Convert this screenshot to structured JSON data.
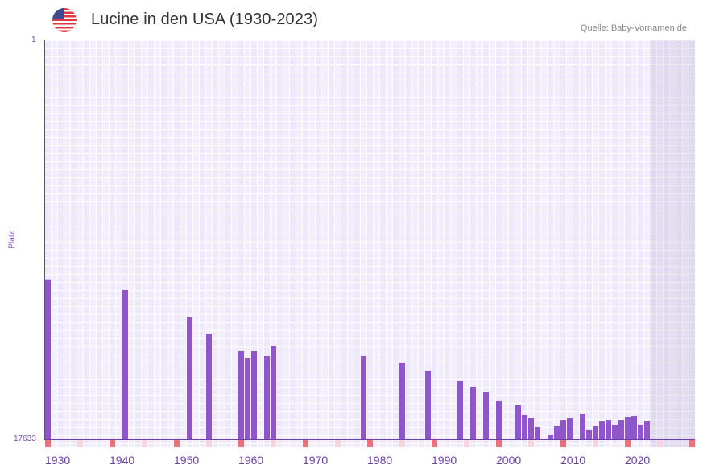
{
  "header": {
    "title": "Lucine in den USA (1930-2023)",
    "source": "Quelle: Baby-Vornamen.de",
    "flag_icon": "us-flag-icon"
  },
  "colors": {
    "bar": "#8e56c8",
    "grid_bg": "#ede8fa",
    "decade_marker": "#e8727a",
    "half_decade_marker": "#f6d6de",
    "axis": "#6a3fa8"
  },
  "chart_data": {
    "type": "bar",
    "title": "Lucine in den USA (1930-2023)",
    "xlabel": "",
    "ylabel": "Platz",
    "y_axis_reversed": true,
    "ylim": [
      1,
      17633
    ],
    "y_ticks": [
      "1",
      "17633"
    ],
    "xlim": [
      1930,
      2030
    ],
    "x_ticks": [
      "1930",
      "1940",
      "1950",
      "1960",
      "1970",
      "1980",
      "1990",
      "2000",
      "2010",
      "2020"
    ],
    "grid": true,
    "legend": "none",
    "points": [
      {
        "year": 1930,
        "rank": 10570
      },
      {
        "year": 1942,
        "rank": 11042
      },
      {
        "year": 1952,
        "rank": 12254
      },
      {
        "year": 1955,
        "rank": 12967
      },
      {
        "year": 1960,
        "rank": 13750
      },
      {
        "year": 1961,
        "rank": 14035
      },
      {
        "year": 1962,
        "rank": 13750
      },
      {
        "year": 1964,
        "rank": 13964
      },
      {
        "year": 1965,
        "rank": 13501
      },
      {
        "year": 1979,
        "rank": 13964
      },
      {
        "year": 1985,
        "rank": 14249
      },
      {
        "year": 1989,
        "rank": 14605
      },
      {
        "year": 1994,
        "rank": 15068
      },
      {
        "year": 1996,
        "rank": 15317
      },
      {
        "year": 1998,
        "rank": 15566
      },
      {
        "year": 2000,
        "rank": 15958
      },
      {
        "year": 2003,
        "rank": 16137
      },
      {
        "year": 2004,
        "rank": 16564
      },
      {
        "year": 2005,
        "rank": 16707
      },
      {
        "year": 2006,
        "rank": 17099
      },
      {
        "year": 2008,
        "rank": 17455
      },
      {
        "year": 2009,
        "rank": 17063
      },
      {
        "year": 2010,
        "rank": 16778
      },
      {
        "year": 2011,
        "rank": 16707
      },
      {
        "year": 2013,
        "rank": 16529
      },
      {
        "year": 2014,
        "rank": 17241
      },
      {
        "year": 2015,
        "rank": 17063
      },
      {
        "year": 2016,
        "rank": 16850
      },
      {
        "year": 2017,
        "rank": 16778
      },
      {
        "year": 2018,
        "rank": 17028
      },
      {
        "year": 2019,
        "rank": 16778
      },
      {
        "year": 2020,
        "rank": 16671
      },
      {
        "year": 2021,
        "rank": 16600
      },
      {
        "year": 2022,
        "rank": 16992
      },
      {
        "year": 2023,
        "rank": 16850
      }
    ],
    "data_through_year": 2023
  }
}
